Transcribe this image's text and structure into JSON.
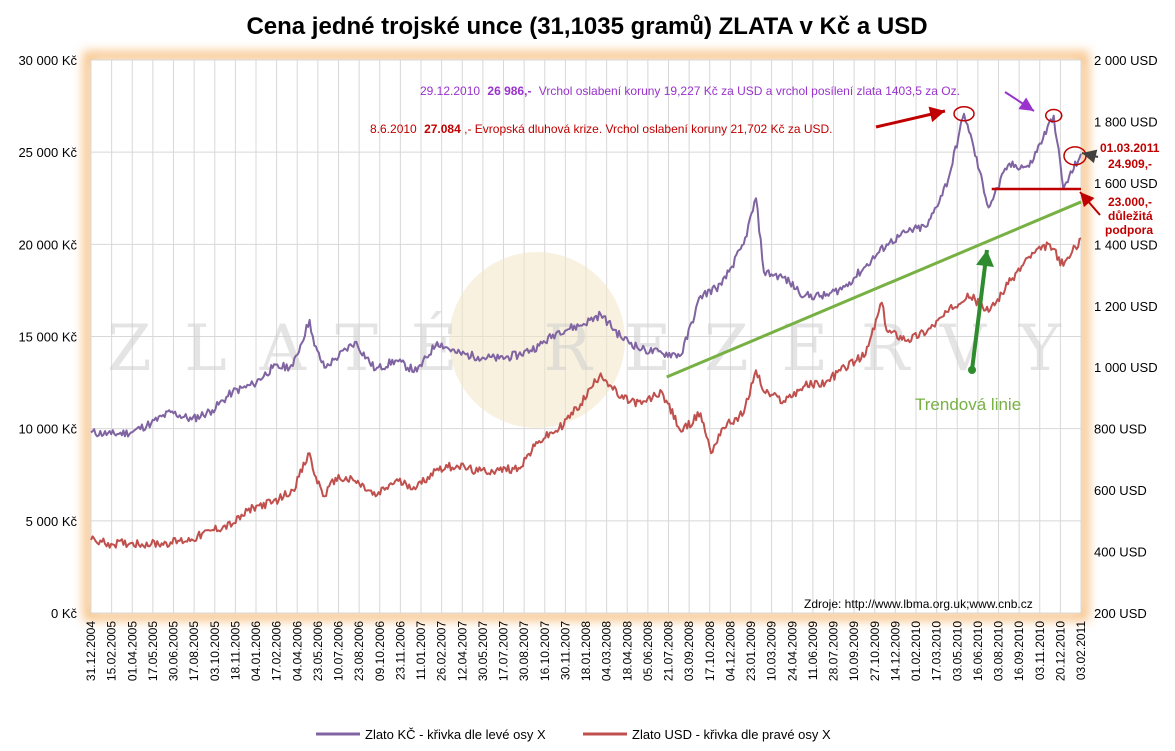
{
  "chart_data": {
    "type": "line",
    "title": "Cena jedné trojské unce (31,1035 gramů) ZLATA v Kč a USD",
    "y_left_ticks": [
      "30 000 Kč",
      "25 000 Kč",
      "20 000 Kč",
      "15 000 Kč",
      "10 000 Kč",
      "5 000 Kč",
      "0 Kč"
    ],
    "y_left_values": [
      30000,
      25000,
      20000,
      15000,
      10000,
      5000,
      0
    ],
    "y_right_ticks": [
      "2 000 USD",
      "1 800 USD",
      "1 600 USD",
      "1 400 USD",
      "1 200 USD",
      "1 000 USD",
      "800 USD",
      "600 USD",
      "400 USD",
      "200 USD"
    ],
    "y_right_values": [
      2000,
      1800,
      1600,
      1400,
      1200,
      1000,
      800,
      600,
      400,
      200
    ],
    "ylim_left": [
      0,
      30000
    ],
    "ylim_right": [
      200,
      2000
    ],
    "x_start": "2004-12-31",
    "x_end": "2011-03-01",
    "x_ticks": [
      "31.12.2004",
      "15.02.2005",
      "01.04.2005",
      "17.05.2005",
      "30.06.2005",
      "17.08.2005",
      "03.10.2005",
      "18.11.2005",
      "04.01.2006",
      "17.02.2006",
      "04.04.2006",
      "23.05.2006",
      "10.07.2006",
      "23.08.2006",
      "09.10.2006",
      "23.11.2006",
      "11.01.2007",
      "26.02.2007",
      "12.04.2007",
      "30.05.2007",
      "17.07.2007",
      "30.08.2007",
      "16.10.2007",
      "30.11.2007",
      "18.01.2008",
      "04.03.2008",
      "18.04.2008",
      "05.06.2008",
      "21.07.2008",
      "03.09.2008",
      "17.10.2008",
      "04.12.2008",
      "23.01.2009",
      "10.03.2009",
      "24.04.2009",
      "11.06.2009",
      "28.07.2009",
      "10.09.2009",
      "27.10.2009",
      "14.12.2009",
      "01.02.2010",
      "17.03.2010",
      "03.05.2010",
      "16.06.2010",
      "03.08.2010",
      "16.09.2010",
      "03.11.2010",
      "20.12.2010",
      "03.02.2011"
    ],
    "grid": true,
    "legend_position": "bottom",
    "series": [
      {
        "name": "Zlato KČ - křivka dle levé osy X",
        "axis": "left",
        "color": "#8064a2",
        "points": [
          [
            "2004-12-31",
            9800
          ],
          [
            "2005-02-15",
            9700
          ],
          [
            "2005-04-01",
            9800
          ],
          [
            "2005-05-17",
            10300
          ],
          [
            "2005-06-30",
            10900
          ],
          [
            "2005-08-17",
            10500
          ],
          [
            "2005-10-03",
            11000
          ],
          [
            "2005-11-18",
            12000
          ],
          [
            "2006-01-04",
            12400
          ],
          [
            "2006-02-17",
            13300
          ],
          [
            "2006-04-04",
            13400
          ],
          [
            "2006-05-12",
            15900
          ],
          [
            "2006-05-23",
            14500
          ],
          [
            "2006-06-15",
            13300
          ],
          [
            "2006-07-10",
            13800
          ],
          [
            "2006-08-23",
            14700
          ],
          [
            "2006-10-09",
            13200
          ],
          [
            "2006-11-23",
            13700
          ],
          [
            "2007-01-11",
            13100
          ],
          [
            "2007-02-26",
            14700
          ],
          [
            "2007-04-12",
            14100
          ],
          [
            "2007-05-30",
            13900
          ],
          [
            "2007-07-17",
            13800
          ],
          [
            "2007-08-30",
            14000
          ],
          [
            "2007-10-16",
            14500
          ],
          [
            "2007-11-30",
            15300
          ],
          [
            "2008-01-18",
            15600
          ],
          [
            "2008-03-04",
            16200
          ],
          [
            "2008-04-18",
            15000
          ],
          [
            "2008-06-05",
            14300
          ],
          [
            "2008-07-21",
            14100
          ],
          [
            "2008-09-03",
            14000
          ],
          [
            "2008-10-17",
            17200
          ],
          [
            "2008-12-04",
            17800
          ],
          [
            "2009-01-23",
            20000
          ],
          [
            "2009-02-20",
            22500
          ],
          [
            "2009-03-10",
            18500
          ],
          [
            "2009-04-24",
            18200
          ],
          [
            "2009-06-11",
            17200
          ],
          [
            "2009-07-28",
            17200
          ],
          [
            "2009-09-10",
            17700
          ],
          [
            "2009-10-27",
            18800
          ],
          [
            "2009-12-14",
            20000
          ],
          [
            "2010-02-01",
            20700
          ],
          [
            "2010-03-17",
            21000
          ],
          [
            "2010-05-03",
            23500
          ],
          [
            "2010-06-08",
            27084
          ],
          [
            "2010-06-16",
            26500
          ],
          [
            "2010-08-03",
            22000
          ],
          [
            "2010-09-16",
            24300
          ],
          [
            "2010-11-03",
            24200
          ],
          [
            "2010-12-29",
            26986
          ],
          [
            "2011-01-20",
            23000
          ],
          [
            "2011-03-01",
            24909
          ]
        ]
      },
      {
        "name": "Zlato USD - křivka dle pravé osy X",
        "axis": "right",
        "color": "#c0504d",
        "points": [
          [
            "2004-12-31",
            438
          ],
          [
            "2005-02-15",
            425
          ],
          [
            "2005-04-01",
            428
          ],
          [
            "2005-05-17",
            425
          ],
          [
            "2005-06-30",
            430
          ],
          [
            "2005-08-17",
            440
          ],
          [
            "2005-10-03",
            470
          ],
          [
            "2005-11-18",
            490
          ],
          [
            "2006-01-04",
            545
          ],
          [
            "2006-02-17",
            560
          ],
          [
            "2006-04-04",
            600
          ],
          [
            "2006-05-12",
            720
          ],
          [
            "2006-05-23",
            650
          ],
          [
            "2006-06-15",
            580
          ],
          [
            "2006-07-10",
            640
          ],
          [
            "2006-08-23",
            630
          ],
          [
            "2006-10-09",
            580
          ],
          [
            "2006-11-23",
            630
          ],
          [
            "2007-01-11",
            610
          ],
          [
            "2007-02-26",
            670
          ],
          [
            "2007-04-12",
            680
          ],
          [
            "2007-05-30",
            660
          ],
          [
            "2007-07-17",
            665
          ],
          [
            "2007-08-30",
            672
          ],
          [
            "2007-10-16",
            760
          ],
          [
            "2007-11-30",
            800
          ],
          [
            "2008-01-18",
            880
          ],
          [
            "2008-03-04",
            980
          ],
          [
            "2008-04-18",
            900
          ],
          [
            "2008-06-05",
            880
          ],
          [
            "2008-07-21",
            920
          ],
          [
            "2008-09-03",
            790
          ],
          [
            "2008-10-17",
            850
          ],
          [
            "2008-11-10",
            720
          ],
          [
            "2008-12-04",
            800
          ],
          [
            "2009-01-23",
            850
          ],
          [
            "2009-02-20",
            990
          ],
          [
            "2009-03-10",
            920
          ],
          [
            "2009-04-24",
            890
          ],
          [
            "2009-06-11",
            940
          ],
          [
            "2009-07-28",
            950
          ],
          [
            "2009-09-10",
            1000
          ],
          [
            "2009-10-27",
            1040
          ],
          [
            "2009-12-03",
            1210
          ],
          [
            "2009-12-14",
            1120
          ],
          [
            "2010-02-01",
            1090
          ],
          [
            "2010-03-17",
            1120
          ],
          [
            "2010-05-03",
            1180
          ],
          [
            "2010-06-16",
            1240
          ],
          [
            "2010-08-03",
            1180
          ],
          [
            "2010-09-16",
            1270
          ],
          [
            "2010-11-03",
            1360
          ],
          [
            "2010-12-20",
            1400
          ],
          [
            "2011-01-20",
            1330
          ],
          [
            "2011-03-01",
            1420
          ]
        ]
      }
    ],
    "annotations": [
      {
        "date": "29.12.2010",
        "value_text": "26 986,-",
        "text": "Vrchol oslabení koruny 19,227 Kč za USD a vrchol posílení zlata 1403,5 za Oz.",
        "color": "#9933cc"
      },
      {
        "date": "8.6.2010",
        "value_text": "27.084",
        "text": ",- Evropská dluhová krize. Vrchol oslabení koruny 21,702 Kč za USD.",
        "color": "#c00000"
      },
      {
        "line1": "01.03.2011",
        "line2": "24.909,-",
        "color": "#c00000"
      },
      {
        "line1": "23.000,-",
        "line2": "důležitá",
        "line3": "podpora",
        "color": "#c00000"
      }
    ],
    "support_level_kc": 23000,
    "trendline": {
      "label": "Trendová linie",
      "color": "#77b043",
      "from": [
        "2008-08-01",
        12800
      ],
      "to": [
        "2011-03-01",
        22300
      ]
    },
    "source": "Zdroje:  http://www.lbma.org.uk;www.cnb.cz",
    "watermark": "ZLATÉ REZERVY"
  }
}
